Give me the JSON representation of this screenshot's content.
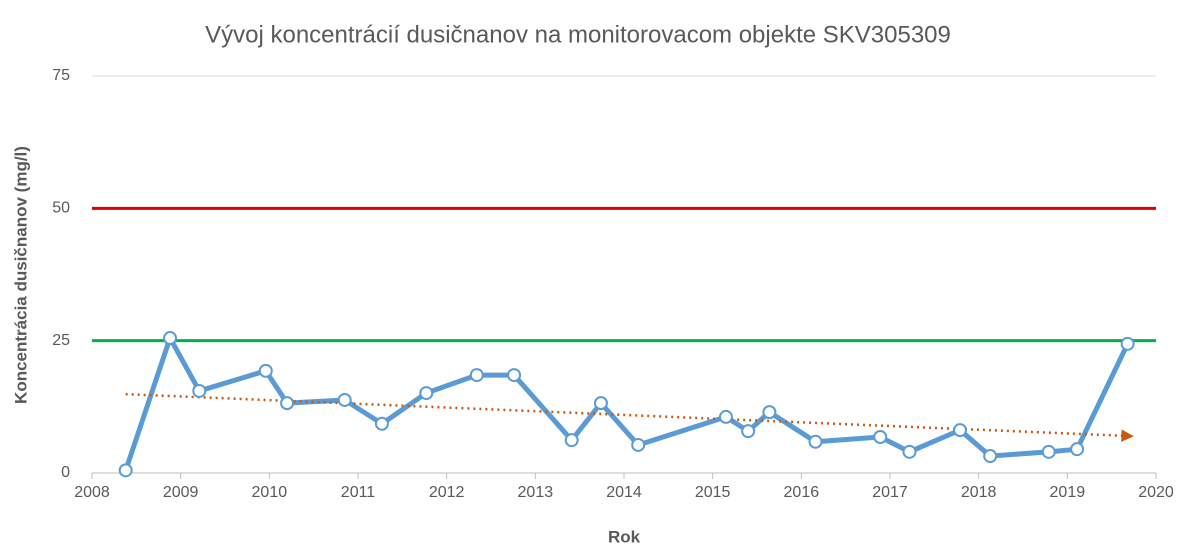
{
  "chart_data": {
    "type": "line",
    "title": "Vývoj koncentrácií dusičnanov na monitorovacom objekte SKV305309",
    "x_label": "Rok",
    "y_label": "Koncentrácia dusičnanov (mg/l)",
    "x": [
      2008.38,
      2008.88,
      2009.21,
      2009.96,
      2010.2,
      2010.85,
      2011.27,
      2011.77,
      2012.34,
      2012.76,
      2013.41,
      2013.74,
      2014.16,
      2015.15,
      2015.4,
      2015.64,
      2016.16,
      2016.89,
      2017.22,
      2017.79,
      2018.13,
      2018.79,
      2019.11,
      2019.68
    ],
    "series": [
      {
        "color": "#5b9bd5",
        "values": [
          0.5,
          25.5,
          15.5,
          19.3,
          13.2,
          13.8,
          9.3,
          15.1,
          18.5,
          18.5,
          6.2,
          13.2,
          5.3,
          10.6,
          7.9,
          11.5,
          5.9,
          6.8,
          4.0,
          8.1,
          3.2,
          4.0,
          4.5,
          24.4
        ]
      }
    ],
    "trend": {
      "color": "#c55a11",
      "x": [
        2008.38,
        2019.68
      ],
      "values": [
        14.9,
        7.0
      ]
    },
    "reference_lines": [
      {
        "value": 50,
        "color": "#e00000"
      },
      {
        "value": 25,
        "color": "#00b050"
      }
    ],
    "xlim": [
      2008,
      2020
    ],
    "xticks": [
      2008,
      2009,
      2010,
      2011,
      2012,
      2013,
      2014,
      2015,
      2016,
      2017,
      2018,
      2019,
      2020
    ],
    "ylim": [
      0,
      75
    ],
    "yticks": [
      0,
      25,
      50,
      75
    ],
    "grid": true
  }
}
